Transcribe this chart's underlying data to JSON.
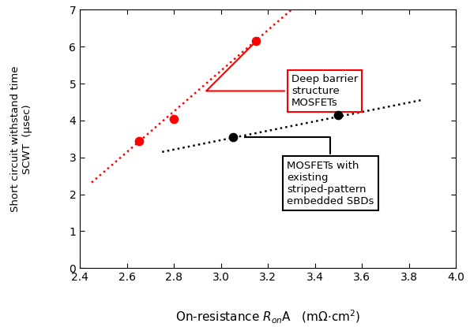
{
  "red_points_x": [
    2.65,
    2.8,
    3.15
  ],
  "red_points_y": [
    3.45,
    4.05,
    6.15
  ],
  "black_points_x": [
    3.05,
    3.5
  ],
  "black_points_y": [
    3.55,
    4.15
  ],
  "red_trend_x": [
    2.45,
    3.3
  ],
  "red_trend_y": [
    2.32,
    7.0
  ],
  "black_trend_x": [
    2.75,
    3.85
  ],
  "black_trend_y": [
    3.15,
    4.55
  ],
  "xlim": [
    2.4,
    4.0
  ],
  "ylim": [
    0,
    7
  ],
  "xticks": [
    2.4,
    2.6,
    2.8,
    3.0,
    3.2,
    3.4,
    3.6,
    3.8,
    4.0
  ],
  "yticks": [
    0,
    1,
    2,
    3,
    4,
    5,
    6,
    7
  ],
  "red_label": "Deep barrier\nstructure\nMOSFETs",
  "black_label": "MOSFETs with\nexisting\nstriped-pattern\nembedded SBDs",
  "red_color": "#ff0000",
  "black_color": "#000000",
  "bg_color": "#ffffff",
  "point_size": 55,
  "ylabel_text": "Short circuit withstand time\nSCWT  (μsec)"
}
